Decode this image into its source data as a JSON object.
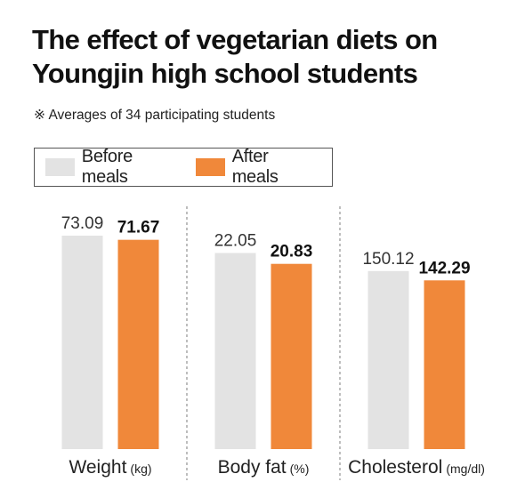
{
  "chart_data": {
    "type": "bar",
    "title_lines": [
      "The effect of vegetarian diets on",
      "Youngjin high school students"
    ],
    "subtitle": "※ Averages of 34 participating students",
    "legend_position": "top-left",
    "series": [
      {
        "name": "Before meals",
        "color": "#e3e3e3"
      },
      {
        "name": "After meals",
        "color": "#f0883a"
      }
    ],
    "groups": [
      {
        "name": "Weight",
        "unit": "(kg)",
        "values": [
          73.09,
          71.67
        ],
        "labels": [
          "73.09",
          "71.67"
        ],
        "scale_max": 73.09
      },
      {
        "name": "Body fat",
        "unit": "(%)",
        "values": [
          22.05,
          20.83
        ],
        "labels": [
          "22.05",
          "20.83"
        ],
        "scale_max": 24.0
      },
      {
        "name": "Cholesterol",
        "unit": "(mg/dl)",
        "values": [
          150.12,
          142.29
        ],
        "labels": [
          "150.12",
          "142.29"
        ],
        "scale_max": 180.0
      }
    ],
    "grid": false
  }
}
